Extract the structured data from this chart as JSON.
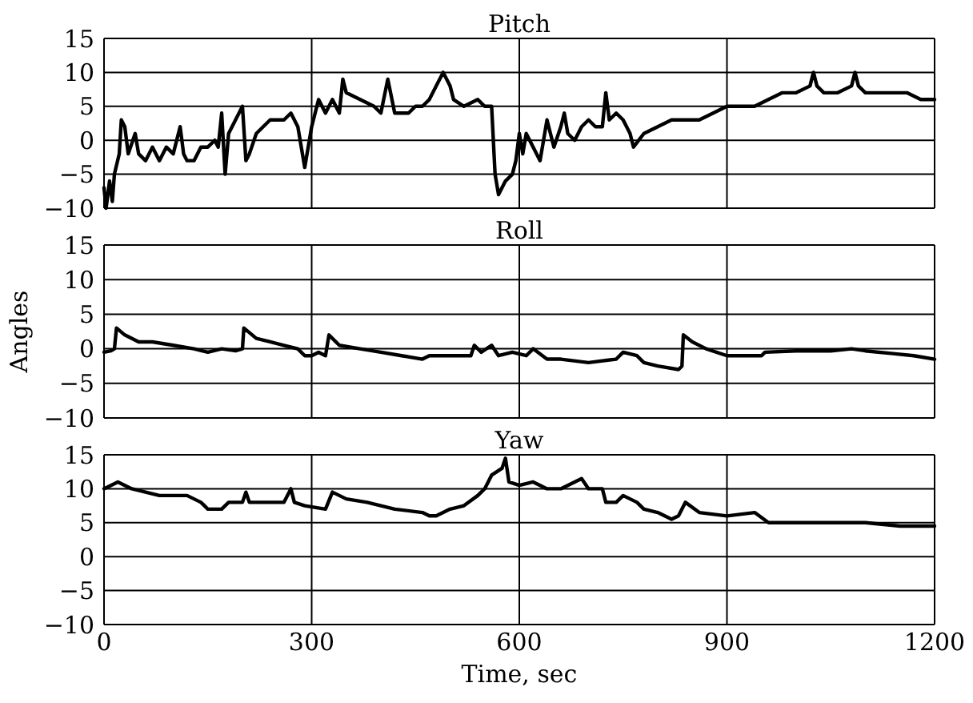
{
  "chart_data": [
    {
      "type": "line",
      "title": "Pitch",
      "xlim": [
        0,
        1200
      ],
      "xticks": [
        0,
        300,
        600,
        900,
        1200
      ],
      "ylim": [
        -10,
        15
      ],
      "yticks": [
        -10,
        -5,
        0,
        5,
        10,
        15
      ],
      "grid": true,
      "tick_labels": "y",
      "line_style": "solid",
      "marker": "none",
      "series": [
        {
          "color": "#000000",
          "x": [
            0,
            3,
            8,
            12,
            15,
            22,
            25,
            30,
            35,
            45,
            50,
            60,
            70,
            80,
            90,
            100,
            110,
            115,
            120,
            130,
            140,
            150,
            160,
            165,
            170,
            175,
            180,
            190,
            200,
            205,
            210,
            220,
            230,
            240,
            260,
            270,
            280,
            290,
            295,
            300,
            305,
            310,
            320,
            330,
            340,
            345,
            350,
            370,
            390,
            400,
            410,
            420,
            440,
            450,
            460,
            470,
            480,
            490,
            500,
            505,
            520,
            540,
            550,
            560,
            565,
            570,
            580,
            590,
            595,
            600,
            605,
            610,
            620,
            630,
            640,
            650,
            660,
            665,
            670,
            680,
            690,
            700,
            710,
            720,
            725,
            730,
            740,
            750,
            760,
            765,
            780,
            800,
            820,
            840,
            860,
            880,
            900,
            920,
            940,
            960,
            980,
            1000,
            1020,
            1025,
            1030,
            1040,
            1060,
            1080,
            1085,
            1090,
            1100,
            1120,
            1140,
            1160,
            1180,
            1200
          ],
          "values": [
            -7,
            -10,
            -6,
            -9,
            -5,
            -2,
            3,
            2,
            -2,
            1,
            -2,
            -3,
            -1,
            -3,
            -1,
            -2,
            2,
            -2,
            -3,
            -3,
            -1,
            -1,
            0,
            -1,
            4,
            -5,
            1,
            3,
            5,
            -3,
            -2,
            1,
            2,
            3,
            3,
            4,
            2,
            -4,
            -1,
            2,
            4,
            6,
            4,
            6,
            4,
            9,
            7,
            6,
            5,
            4,
            9,
            4,
            4,
            5,
            5,
            6,
            8,
            10,
            8,
            6,
            5,
            6,
            5,
            5,
            -5,
            -8,
            -6,
            -5,
            -3,
            1,
            -2,
            1,
            -1,
            -3,
            3,
            -1,
            2,
            4,
            1,
            0,
            2,
            3,
            2,
            2,
            7,
            3,
            4,
            3,
            1,
            -1,
            1,
            2,
            3,
            3,
            3,
            4,
            5,
            5,
            5,
            6,
            7,
            7,
            8,
            10,
            8,
            7,
            7,
            8,
            10,
            8,
            7,
            7,
            7,
            7,
            6,
            6
          ]
        }
      ]
    },
    {
      "type": "line",
      "title": "Roll",
      "ylabel": "Angles",
      "xlim": [
        0,
        1200
      ],
      "xticks": [
        0,
        300,
        600,
        900,
        1200
      ],
      "ylim": [
        -10,
        15
      ],
      "yticks": [
        -10,
        -5,
        0,
        5,
        10,
        15
      ],
      "grid": true,
      "tick_labels": "y",
      "line_style": "solid",
      "marker": "none",
      "series": [
        {
          "color": "#000000",
          "x": [
            0,
            10,
            15,
            18,
            30,
            50,
            70,
            100,
            130,
            150,
            170,
            190,
            200,
            202,
            220,
            240,
            260,
            280,
            290,
            300,
            310,
            320,
            325,
            340,
            370,
            400,
            430,
            460,
            470,
            500,
            530,
            535,
            545,
            560,
            570,
            590,
            610,
            620,
            640,
            660,
            700,
            740,
            750,
            770,
            780,
            800,
            830,
            835,
            837,
            850,
            870,
            900,
            950,
            955,
            1000,
            1050,
            1080,
            1100,
            1140,
            1170,
            1200
          ],
          "values": [
            -0.5,
            -0.3,
            0,
            3,
            2,
            1,
            1,
            0.5,
            0,
            -0.5,
            0,
            -0.3,
            0,
            3,
            1.5,
            1,
            0.5,
            0,
            -1,
            -1,
            -0.5,
            -1,
            2,
            0.5,
            0,
            -0.5,
            -1,
            -1.5,
            -1,
            -1,
            -1,
            0.5,
            -0.5,
            0.5,
            -1,
            -0.5,
            -1,
            0,
            -1.5,
            -1.5,
            -2,
            -1.5,
            -0.5,
            -1,
            -2,
            -2.5,
            -3,
            -2.5,
            2,
            1,
            0,
            -1,
            -1,
            -0.5,
            -0.3,
            -0.3,
            0,
            -0.3,
            -0.7,
            -1,
            -1.5
          ]
        }
      ]
    },
    {
      "type": "line",
      "title": "Yaw",
      "xlabel": "Time, sec",
      "xlim": [
        0,
        1200
      ],
      "xticks": [
        0,
        300,
        600,
        900,
        1200
      ],
      "ylim": [
        -10,
        15
      ],
      "yticks": [
        -10,
        -5,
        0,
        5,
        10,
        15
      ],
      "grid": true,
      "line_style": "solid",
      "marker": "none",
      "series": [
        {
          "color": "#000000",
          "x": [
            0,
            20,
            40,
            80,
            120,
            140,
            150,
            170,
            180,
            200,
            205,
            210,
            240,
            260,
            270,
            275,
            290,
            320,
            330,
            350,
            380,
            420,
            460,
            470,
            480,
            500,
            520,
            540,
            550,
            560,
            575,
            580,
            585,
            600,
            620,
            640,
            660,
            680,
            690,
            700,
            720,
            725,
            740,
            750,
            770,
            780,
            800,
            820,
            830,
            840,
            860,
            900,
            940,
            960,
            1000,
            1050,
            1100,
            1150,
            1200
          ],
          "values": [
            10,
            11,
            10,
            9,
            9,
            8,
            7,
            7,
            8,
            8,
            9.5,
            8,
            8,
            8,
            10,
            8,
            7.5,
            7,
            9.5,
            8.5,
            8,
            7,
            6.5,
            6,
            6,
            7,
            7.5,
            9,
            10,
            12,
            13,
            14.5,
            11,
            10.5,
            11,
            10,
            10,
            11,
            11.5,
            10,
            10,
            8,
            8,
            9,
            8,
            7,
            6.5,
            5.5,
            6,
            8,
            6.5,
            6,
            6.5,
            5,
            5,
            5,
            5,
            4.5,
            4.5
          ]
        }
      ]
    }
  ]
}
